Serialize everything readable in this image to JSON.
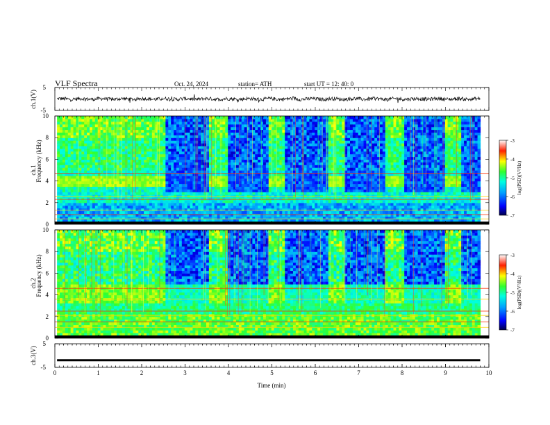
{
  "header": {
    "title": "VLF  Spectra",
    "date": "Oct. 24, 2024",
    "station": "station= ATH",
    "start_ut": "start  UT  =    12: 40: 0"
  },
  "chart_data": [
    {
      "type": "line",
      "panel": "ch1-voltage",
      "ylabel": "ch.1(V)",
      "ylim": [
        -5,
        5
      ],
      "yticks": [
        "5",
        "-5"
      ],
      "description_level": "noisy waveform centered near 0 V with amplitude about ±1 V",
      "color": "#000000"
    },
    {
      "type": "heatmap",
      "panel": "ch1-spectrogram",
      "ylabel_channel": "ch.1",
      "ylabel": "Frequency  (kHz)",
      "ylim": [
        0,
        10
      ],
      "yticks": [
        "0",
        "2",
        "4",
        "6",
        "8",
        "10"
      ],
      "colorbar": {
        "label": "log(PSD)(V²/Hz)",
        "range": [
          -7,
          -3
        ],
        "ticks": [
          "-3",
          "-4",
          "-5",
          "-6",
          "-7"
        ]
      },
      "quiet_intervals_min": [
        [
          2.55,
          3.55
        ],
        [
          3.95,
          4.9
        ],
        [
          5.3,
          6.25
        ],
        [
          6.65,
          7.6
        ],
        [
          8.0,
          8.95
        ],
        [
          9.35,
          9.8
        ]
      ],
      "transmitter_intervals_min": [
        [
          0.05,
          2.55
        ],
        [
          3.55,
          3.95
        ],
        [
          4.9,
          5.3
        ],
        [
          6.25,
          6.65
        ],
        [
          7.6,
          8.0
        ],
        [
          8.95,
          9.35
        ]
      ]
    },
    {
      "type": "heatmap",
      "panel": "ch2-spectrogram",
      "ylabel_channel": "ch.2",
      "ylabel": "Frequency  (kHz)",
      "ylim": [
        0,
        10
      ],
      "yticks": [
        "0",
        "2",
        "4",
        "6",
        "8",
        "10"
      ],
      "colorbar": {
        "label": "log(PSD)(V²/Hz)",
        "range": [
          -7,
          -3
        ],
        "ticks": [
          "-3",
          "-4",
          "-5",
          "-6",
          "-7"
        ]
      }
    },
    {
      "type": "line",
      "panel": "ch3-voltage",
      "ylabel": "ch.3(V)",
      "ylim": [
        -5,
        5
      ],
      "yticks": [
        "5",
        "-5"
      ],
      "description_level": "thick flat line near -2 V",
      "color": "#000000"
    }
  ],
  "xaxis": {
    "label": "Time  (min)",
    "range": [
      0,
      10
    ],
    "ticks": [
      "0",
      "1",
      "2",
      "3",
      "4",
      "5",
      "6",
      "7",
      "8",
      "9",
      "10"
    ]
  },
  "colors": {
    "ink": "#000000",
    "background": "#ffffff"
  }
}
